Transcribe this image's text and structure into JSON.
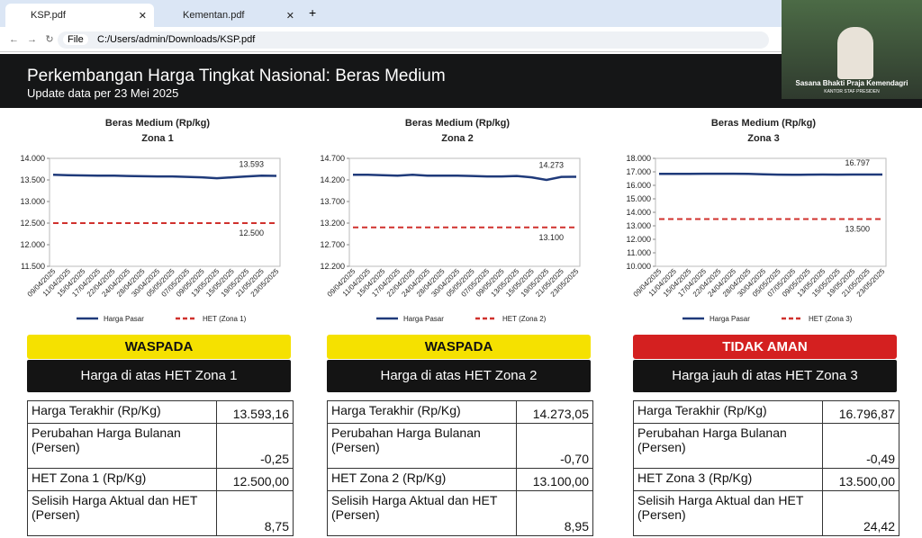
{
  "browser": {
    "tabs": [
      "KSP.pdf",
      "Kementan.pdf"
    ],
    "file_label": "File",
    "address": "C:/Users/admin/Downloads/KSP.pdf"
  },
  "video": {
    "caption": "Sasana Bhakti Praja Kemendagri",
    "subcaption": "KANTOR STAF PRESIDEN"
  },
  "header": {
    "title": "Perkembangan Harga Tingkat Nasional: Beras Medium",
    "subtitle": "Update data per 23 Mei 2025"
  },
  "panels": [
    {
      "chart": {
        "type": "line",
        "title": "Beras Medium (Rp/kg)",
        "subtitle": "Zona 1",
        "x": [
          "09/04/2025",
          "11/04/2025",
          "15/04/2025",
          "17/04/2025",
          "22/04/2025",
          "24/04/2025",
          "28/04/2025",
          "30/04/2025",
          "05/05/2025",
          "07/05/2025",
          "09/05/2025",
          "13/05/2025",
          "15/05/2025",
          "19/05/2025",
          "21/05/2025",
          "23/05/2025"
        ],
        "series": [
          {
            "name": "Harga Pasar",
            "color": "#1f3a7a",
            "values": [
              13620,
              13610,
              13605,
              13600,
              13600,
              13590,
              13585,
              13580,
              13580,
              13570,
              13560,
              13540,
              13560,
              13580,
              13600,
              13593
            ],
            "value_labels": [
              null,
              null,
              null,
              null,
              null,
              null,
              null,
              null,
              null,
              null,
              null,
              null,
              null,
              null,
              null,
              "13.593"
            ]
          },
          {
            "name": "HET (Zona 1)",
            "color": "#d0312d",
            "dashed": true,
            "values": [
              12500,
              12500,
              12500,
              12500,
              12500,
              12500,
              12500,
              12500,
              12500,
              12500,
              12500,
              12500,
              12500,
              12500,
              12500,
              12500
            ],
            "value_labels": [
              null,
              null,
              null,
              null,
              null,
              null,
              null,
              null,
              null,
              null,
              null,
              null,
              null,
              null,
              null,
              "12.500"
            ]
          }
        ],
        "ylim": [
          11500,
          14000
        ],
        "yticks": [
          {
            "value": 11500,
            "label": "11.500"
          },
          {
            "value": 12000,
            "label": "12.000"
          },
          {
            "value": 12500,
            "label": "12.500"
          },
          {
            "value": 13000,
            "label": "13.000"
          },
          {
            "value": 13500,
            "label": "13.500"
          },
          {
            "value": 14000,
            "label": "14.000"
          }
        ]
      },
      "status": "WASPADA",
      "status_color": "#f5e100",
      "status_text_color": "#111111",
      "note": "Harga di atas HET Zona 1",
      "table": [
        [
          "Harga Terakhir (Rp/Kg)",
          "13.593,16"
        ],
        [
          "Perubahan Harga Bulanan (Persen)",
          "-0,25"
        ],
        [
          "HET Zona 1 (Rp/Kg)",
          "12.500,00"
        ],
        [
          "Selisih Harga Aktual dan HET (Persen)",
          "8,75"
        ]
      ]
    },
    {
      "chart": {
        "type": "line",
        "title": "Beras Medium (Rp/kg)",
        "subtitle": "Zona 2",
        "x": [
          "09/04/2025",
          "11/04/2025",
          "15/04/2025",
          "17/04/2025",
          "22/04/2025",
          "24/04/2025",
          "28/04/2025",
          "30/04/2025",
          "05/05/2025",
          "07/05/2025",
          "09/05/2025",
          "13/05/2025",
          "15/05/2025",
          "19/05/2025",
          "21/05/2025",
          "23/05/2025"
        ],
        "series": [
          {
            "name": "Harga Pasar",
            "color": "#1f3a7a",
            "values": [
              14320,
              14320,
              14310,
              14300,
              14320,
              14300,
              14300,
              14300,
              14290,
              14280,
              14280,
              14290,
              14260,
              14200,
              14270,
              14273
            ],
            "value_labels": [
              null,
              null,
              null,
              null,
              null,
              null,
              null,
              null,
              null,
              null,
              null,
              null,
              null,
              null,
              null,
              "14.273"
            ]
          },
          {
            "name": "HET (Zona 2)",
            "color": "#d0312d",
            "dashed": true,
            "values": [
              13100,
              13100,
              13100,
              13100,
              13100,
              13100,
              13100,
              13100,
              13100,
              13100,
              13100,
              13100,
              13100,
              13100,
              13100,
              13100
            ],
            "value_labels": [
              null,
              null,
              null,
              null,
              null,
              null,
              null,
              null,
              null,
              null,
              null,
              null,
              null,
              null,
              null,
              "13.100"
            ]
          }
        ],
        "ylim": [
          12200,
          14700
        ],
        "yticks": [
          {
            "value": 12200,
            "label": "12.200"
          },
          {
            "value": 12700,
            "label": "12.700"
          },
          {
            "value": 13200,
            "label": "13.200"
          },
          {
            "value": 13700,
            "label": "13.700"
          },
          {
            "value": 14200,
            "label": "14.200"
          },
          {
            "value": 14700,
            "label": "14.700"
          }
        ]
      },
      "status": "WASPADA",
      "status_color": "#f5e100",
      "status_text_color": "#111111",
      "note": "Harga di atas HET Zona 2",
      "table": [
        [
          "Harga Terakhir (Rp/Kg)",
          "14.273,05"
        ],
        [
          "Perubahan Harga Bulanan (Persen)",
          "-0,70"
        ],
        [
          "HET Zona 2 (Rp/Kg)",
          "13.100,00"
        ],
        [
          "Selisih Harga Aktual dan HET (Persen)",
          "8,95"
        ]
      ]
    },
    {
      "chart": {
        "type": "line",
        "title": "Beras Medium (Rp/kg)",
        "subtitle": "Zona 3",
        "x": [
          "09/04/2025",
          "11/04/2025",
          "15/04/2025",
          "17/04/2025",
          "22/04/2025",
          "24/04/2025",
          "28/04/2025",
          "30/04/2025",
          "05/05/2025",
          "07/05/2025",
          "09/05/2025",
          "13/05/2025",
          "15/05/2025",
          "19/05/2025",
          "21/05/2025",
          "23/05/2025"
        ],
        "series": [
          {
            "name": "Harga Pasar",
            "color": "#1f3a7a",
            "values": [
              16850,
              16850,
              16850,
              16860,
              16860,
              16860,
              16850,
              16820,
              16790,
              16780,
              16790,
              16800,
              16790,
              16800,
              16800,
              16797
            ],
            "value_labels": [
              null,
              null,
              null,
              null,
              null,
              null,
              null,
              null,
              null,
              null,
              null,
              null,
              null,
              null,
              null,
              "16.797"
            ]
          },
          {
            "name": "HET (Zona 3)",
            "color": "#d0312d",
            "dashed": true,
            "values": [
              13500,
              13500,
              13500,
              13500,
              13500,
              13500,
              13500,
              13500,
              13500,
              13500,
              13500,
              13500,
              13500,
              13500,
              13500,
              13500
            ],
            "value_labels": [
              null,
              null,
              null,
              null,
              null,
              null,
              null,
              null,
              null,
              null,
              null,
              null,
              null,
              null,
              null,
              "13.500"
            ]
          }
        ],
        "ylim": [
          10000,
          18000
        ],
        "yticks": [
          {
            "value": 10000,
            "label": "10.000"
          },
          {
            "value": 11000,
            "label": "11.000"
          },
          {
            "value": 12000,
            "label": "12.000"
          },
          {
            "value": 13000,
            "label": "13.000"
          },
          {
            "value": 14000,
            "label": "14.000"
          },
          {
            "value": 15000,
            "label": "15.000"
          },
          {
            "value": 16000,
            "label": "16.000"
          },
          {
            "value": 17000,
            "label": "17.000"
          },
          {
            "value": 18000,
            "label": "18.000"
          }
        ]
      },
      "status": "TIDAK AMAN",
      "status_color": "#d42020",
      "status_text_color": "#ffffff",
      "note": "Harga jauh di atas HET Zona 3",
      "table": [
        [
          "Harga Terakhir (Rp/Kg)",
          "16.796,87"
        ],
        [
          "Perubahan Harga Bulanan (Persen)",
          "-0,49"
        ],
        [
          "HET Zona 3 (Rp/Kg)",
          "13.500,00"
        ],
        [
          "Selisih Harga Aktual dan HET (Persen)",
          "24,42"
        ]
      ]
    }
  ]
}
